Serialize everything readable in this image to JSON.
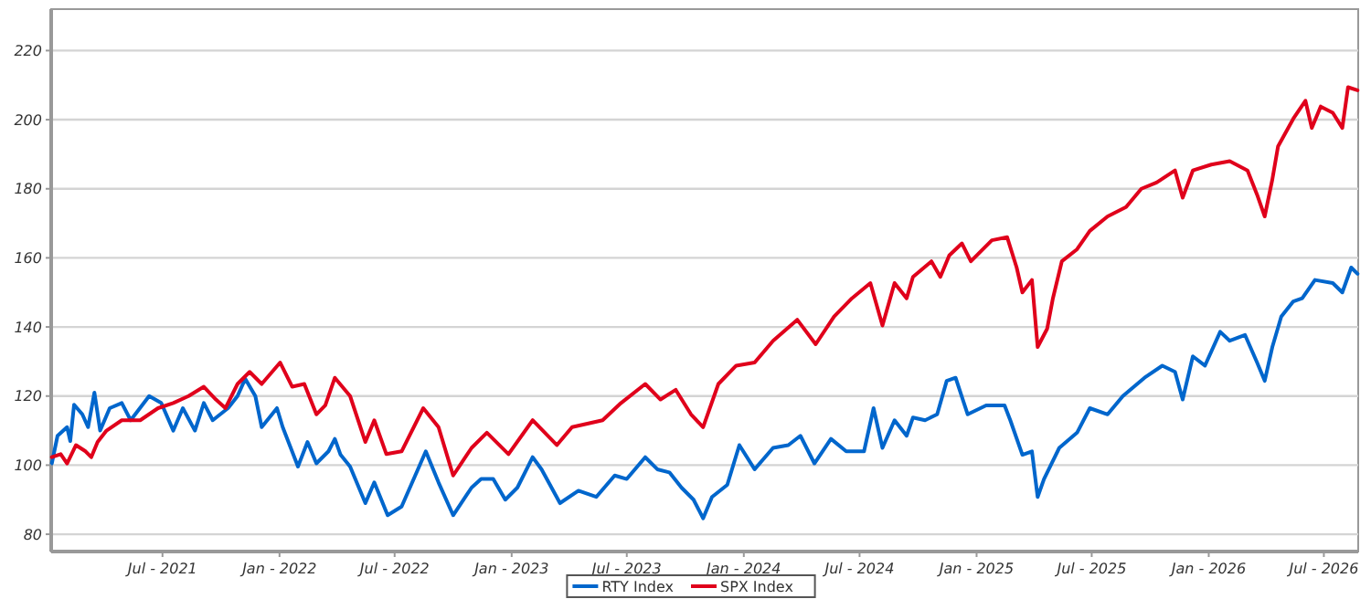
{
  "chart_data": {
    "type": "line",
    "xlim": [
      "2021-01-07",
      "2026-08-24"
    ],
    "ylim": [
      75,
      232
    ],
    "yticks": [
      80,
      100,
      120,
      140,
      160,
      180,
      200,
      220
    ],
    "xticks": [
      {
        "value": "2021-07-01",
        "label": "Jul - 2021"
      },
      {
        "value": "2022-01-01",
        "label": "Jan - 2022"
      },
      {
        "value": "2022-07-01",
        "label": "Jul - 2022"
      },
      {
        "value": "2023-01-01",
        "label": "Jan - 2023"
      },
      {
        "value": "2023-07-01",
        "label": "Jul - 2023"
      },
      {
        "value": "2024-01-01",
        "label": "Jan - 2024"
      },
      {
        "value": "2024-07-01",
        "label": "Jul - 2024"
      },
      {
        "value": "2025-01-01",
        "label": "Jan - 2025"
      },
      {
        "value": "2025-07-01",
        "label": "Jul - 2025"
      },
      {
        "value": "2026-01-01",
        "label": "Jan - 2026"
      },
      {
        "value": "2026-07-01",
        "label": "Jul - 2026"
      }
    ],
    "grid": "y",
    "legend": "bottom",
    "marker": "none",
    "line_style": "solid",
    "series": [
      {
        "name": "RTY Index",
        "color": "#0066cc",
        "x": [
          "2021-01-08",
          "2021-01-17",
          "2021-02-01",
          "2021-02-06",
          "2021-02-12",
          "2021-02-25",
          "2021-03-06",
          "2021-03-16",
          "2021-03-25",
          "2021-04-09",
          "2021-04-28",
          "2021-05-12",
          "2021-06-10",
          "2021-06-29",
          "2021-07-18",
          "2021-08-02",
          "2021-08-21",
          "2021-09-04",
          "2021-09-18",
          "2021-10-12",
          "2021-10-27",
          "2021-11-08",
          "2021-11-24",
          "2021-12-04",
          "2021-12-28",
          "2022-01-06",
          "2022-01-30",
          "2022-02-14",
          "2022-02-28",
          "2022-03-19",
          "2022-03-29",
          "2022-04-07",
          "2022-04-22",
          "2022-05-16",
          "2022-05-30",
          "2022-06-20",
          "2022-07-12",
          "2022-08-19",
          "2022-09-08",
          "2022-10-01",
          "2022-10-30",
          "2022-11-14",
          "2022-12-03",
          "2022-12-22",
          "2023-01-10",
          "2023-02-03",
          "2023-02-17",
          "2023-03-18",
          "2023-04-16",
          "2023-05-14",
          "2023-06-12",
          "2023-07-01",
          "2023-07-30",
          "2023-08-18",
          "2023-09-06",
          "2023-09-25",
          "2023-10-14",
          "2023-10-29",
          "2023-11-12",
          "2023-12-06",
          "2023-12-25",
          "2024-01-18",
          "2024-02-16",
          "2024-03-11",
          "2024-03-30",
          "2024-04-21",
          "2024-05-17",
          "2024-06-10",
          "2024-07-08",
          "2024-07-23",
          "2024-08-06",
          "2024-08-25",
          "2024-09-13",
          "2024-09-23",
          "2024-10-12",
          "2024-10-31",
          "2024-11-15",
          "2024-11-29",
          "2024-12-18",
          "2025-01-16",
          "2025-02-14",
          "2025-02-23",
          "2025-03-14",
          "2025-03-29",
          "2025-04-07",
          "2025-04-17",
          "2025-05-11",
          "2025-06-08",
          "2025-06-28",
          "2025-07-26",
          "2025-08-19",
          "2025-09-22",
          "2025-10-20",
          "2025-11-09",
          "2025-11-21",
          "2025-12-07",
          "2025-12-26",
          "2026-01-19",
          "2026-02-03",
          "2026-02-27",
          "2026-03-18",
          "2026-03-30",
          "2026-04-11",
          "2026-04-25",
          "2026-05-14",
          "2026-05-28",
          "2026-06-17",
          "2026-07-15",
          "2026-07-30",
          "2026-08-13",
          "2026-08-23"
        ],
        "values": [
          100.5,
          108.5,
          111,
          107,
          117.5,
          114.7,
          111,
          121,
          110,
          116.5,
          118,
          113,
          120,
          118,
          110,
          116.5,
          110,
          118,
          113,
          116.5,
          120,
          125,
          120,
          111,
          116.5,
          111,
          99.6,
          106.7,
          100.5,
          104,
          107.6,
          103,
          99.6,
          89,
          95,
          85.5,
          88,
          104,
          95,
          85.5,
          93.5,
          96,
          96,
          90,
          93.5,
          102.3,
          98.8,
          89,
          92.6,
          90.8,
          97,
          96,
          102.3,
          98.8,
          97.9,
          93.5,
          90,
          84.6,
          90.8,
          94.3,
          105.8,
          98.8,
          105,
          105.8,
          108.5,
          100.5,
          107.6,
          104,
          104,
          116.5,
          105,
          113,
          108.5,
          113.8,
          113,
          114.7,
          124.4,
          125.3,
          114.7,
          117.3,
          117.3,
          113,
          103,
          104,
          90.8,
          96,
          105,
          109.4,
          116.5,
          114.7,
          120,
          125.3,
          128.8,
          127,
          119,
          131.5,
          128.8,
          138.6,
          136,
          137.7,
          129.7,
          124.4,
          134.2,
          143,
          147.4,
          148.3,
          153.6,
          152.7,
          150,
          157.2,
          155.4
        ]
      },
      {
        "name": "SPX Index",
        "color": "#e0001b",
        "x": [
          "2021-01-08",
          "2021-01-22",
          "2021-02-01",
          "2021-02-15",
          "2021-03-02",
          "2021-03-11",
          "2021-03-21",
          "2021-04-04",
          "2021-04-28",
          "2021-05-27",
          "2021-06-24",
          "2021-07-18",
          "2021-08-11",
          "2021-09-04",
          "2021-09-23",
          "2021-10-08",
          "2021-10-27",
          "2021-11-15",
          "2021-12-04",
          "2022-01-02",
          "2022-01-21",
          "2022-02-09",
          "2022-02-28",
          "2022-03-14",
          "2022-03-29",
          "2022-04-22",
          "2022-05-16",
          "2022-05-30",
          "2022-06-18",
          "2022-07-12",
          "2022-08-15",
          "2022-09-08",
          "2022-10-01",
          "2022-10-30",
          "2022-11-23",
          "2022-12-27",
          "2023-02-03",
          "2023-03-13",
          "2023-04-06",
          "2023-05-24",
          "2023-06-22",
          "2023-07-30",
          "2023-08-23",
          "2023-09-16",
          "2023-10-10",
          "2023-10-29",
          "2023-11-22",
          "2023-12-20",
          "2024-01-18",
          "2024-02-16",
          "2024-03-25",
          "2024-04-23",
          "2024-05-22",
          "2024-06-19",
          "2024-07-18",
          "2024-08-06",
          "2024-08-25",
          "2024-09-13",
          "2024-09-23",
          "2024-10-22",
          "2024-11-05",
          "2024-11-19",
          "2024-12-09",
          "2024-12-23",
          "2025-01-25",
          "2025-02-18",
          "2025-03-05",
          "2025-03-14",
          "2025-03-29",
          "2025-04-07",
          "2025-04-22",
          "2025-05-01",
          "2025-05-15",
          "2025-06-08",
          "2025-06-28",
          "2025-07-26",
          "2025-08-24",
          "2025-09-17",
          "2025-10-11",
          "2025-11-09",
          "2025-11-21",
          "2025-12-07",
          "2026-01-05",
          "2026-02-03",
          "2026-03-03",
          "2026-03-18",
          "2026-03-30",
          "2026-04-11",
          "2026-04-20",
          "2026-05-14",
          "2026-06-02",
          "2026-06-12",
          "2026-06-26",
          "2026-07-15",
          "2026-07-30",
          "2026-08-08",
          "2026-08-23"
        ],
        "values": [
          102.3,
          103.2,
          100.5,
          105.8,
          104,
          102.3,
          106.7,
          110,
          113,
          113,
          116.5,
          118,
          120,
          122.7,
          119,
          116.5,
          123.5,
          127,
          123.5,
          129.7,
          122.7,
          123.5,
          114.7,
          117.3,
          125.3,
          120,
          106.7,
          113,
          103.2,
          104,
          116.5,
          111,
          97,
          105,
          109.4,
          103.2,
          113,
          105.8,
          111,
          113,
          118,
          123.5,
          119,
          121.8,
          114.7,
          111,
          123.5,
          128.8,
          129.7,
          136,
          142.1,
          135,
          143,
          148.3,
          152.7,
          140.4,
          152.7,
          148.3,
          154.5,
          159,
          154.5,
          160.7,
          164.2,
          159,
          165.1,
          166,
          157.2,
          150,
          153.6,
          134.2,
          139.5,
          148.3,
          159,
          162.5,
          167.8,
          172,
          174.7,
          180,
          181.8,
          185.3,
          177.4,
          185.3,
          187,
          188,
          185.3,
          178.3,
          172,
          182.7,
          192.3,
          200.3,
          205.5,
          197.6,
          203.8,
          202,
          197.6,
          209.4,
          208.5
        ]
      }
    ]
  }
}
